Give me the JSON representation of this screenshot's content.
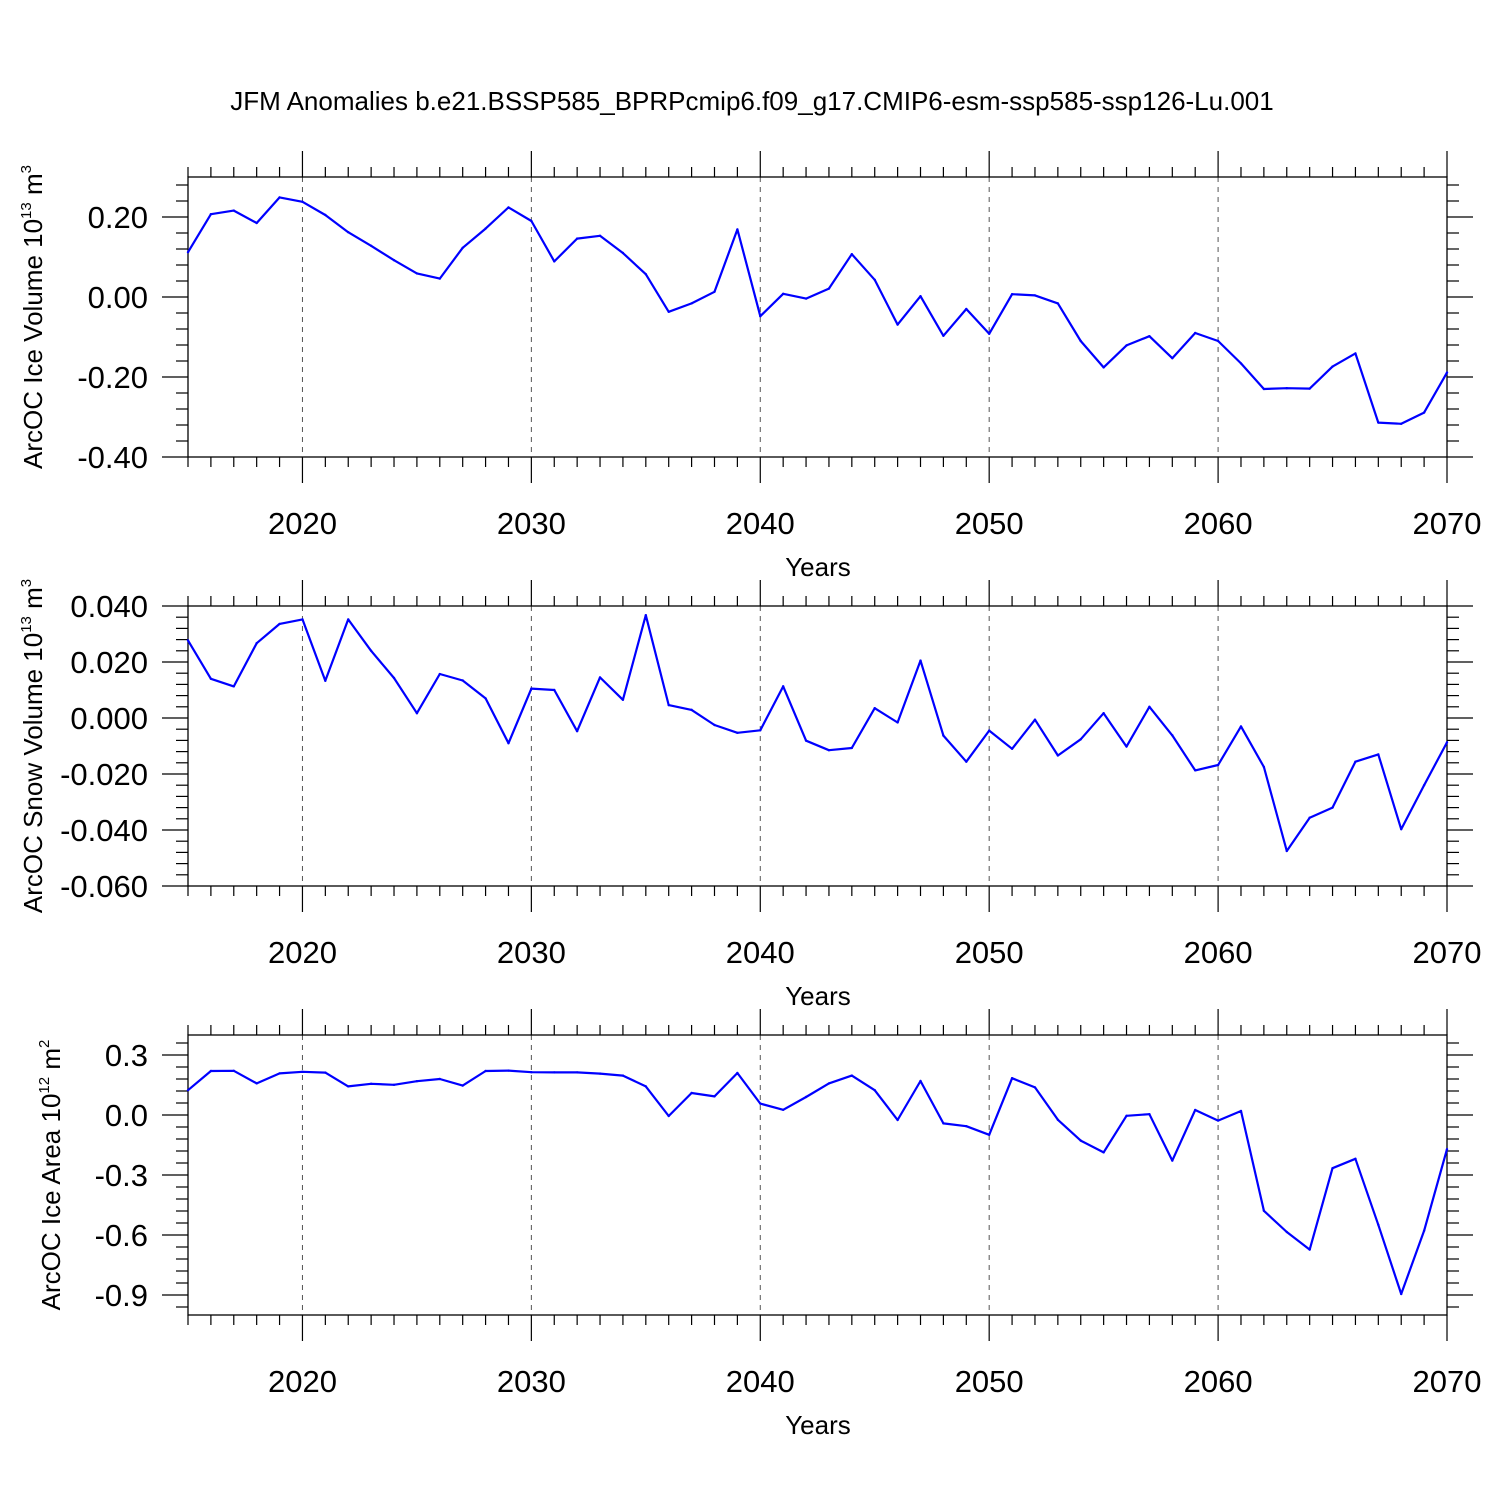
{
  "title": "JFM Anomalies b.e21.BSSP585_BPRPcmip6.f09_g17.CMIP6-esm-ssp585-ssp126-Lu.001",
  "line_color": "#0000ff",
  "chart_data": [
    {
      "type": "line",
      "name": "ice-volume",
      "ylabel_main": "ArcOC Ice Volume 10",
      "ylabel_exp": "13",
      "ylabel_unit": " m",
      "ylabel_unit_exp": "3",
      "xlabel": "Years",
      "xlim": [
        2015,
        2070
      ],
      "ylim": [
        -0.4,
        0.3
      ],
      "xticks": [
        2020,
        2030,
        2040,
        2050,
        2060,
        2070
      ],
      "xtick_labels": [
        "2020",
        "2030",
        "2040",
        "2050",
        "2060",
        "2070"
      ],
      "yticks": [
        0.2,
        0.0,
        -0.2,
        -0.4
      ],
      "ytick_labels": [
        "0.20",
        "0.00",
        "-0.20",
        "-0.40"
      ],
      "x": [
        2015,
        2016,
        2017,
        2018,
        2019,
        2020,
        2021,
        2022,
        2023,
        2024,
        2025,
        2026,
        2027,
        2028,
        2029,
        2030,
        2031,
        2032,
        2033,
        2034,
        2035,
        2036,
        2037,
        2038,
        2039,
        2040,
        2041,
        2042,
        2043,
        2044,
        2045,
        2046,
        2047,
        2048,
        2049,
        2050,
        2051,
        2052,
        2053,
        2054,
        2055,
        2056,
        2057,
        2058,
        2059,
        2060,
        2061,
        2062,
        2063,
        2064,
        2065,
        2066,
        2067,
        2068,
        2069,
        2070
      ],
      "values": [
        0.112,
        0.207,
        0.216,
        0.185,
        0.249,
        0.238,
        0.205,
        0.162,
        0.128,
        0.092,
        0.059,
        0.046,
        0.123,
        0.171,
        0.224,
        0.19,
        0.089,
        0.146,
        0.153,
        0.11,
        0.057,
        -0.037,
        -0.016,
        0.013,
        0.169,
        -0.048,
        0.008,
        -0.004,
        0.021,
        0.107,
        0.043,
        -0.069,
        0.002,
        -0.097,
        -0.03,
        -0.092,
        0.007,
        0.004,
        -0.016,
        -0.11,
        -0.176,
        -0.121,
        -0.098,
        -0.153,
        -0.09,
        -0.11,
        -0.166,
        -0.23,
        -0.228,
        -0.229,
        -0.174,
        -0.141,
        -0.314,
        -0.317,
        -0.289,
        -0.189
      ]
    },
    {
      "type": "line",
      "name": "snow-volume",
      "ylabel_main": "ArcOC Snow Volume 10",
      "ylabel_exp": "13",
      "ylabel_unit": " m",
      "ylabel_unit_exp": "3",
      "xlabel": "Years",
      "xlim": [
        2015,
        2070
      ],
      "ylim": [
        -0.06,
        0.04
      ],
      "xticks": [
        2020,
        2030,
        2040,
        2050,
        2060,
        2070
      ],
      "xtick_labels": [
        "2020",
        "2030",
        "2040",
        "2050",
        "2060",
        "2070"
      ],
      "yticks": [
        0.04,
        0.02,
        0.0,
        -0.02,
        -0.04,
        -0.06
      ],
      "ytick_labels": [
        "0.040",
        "0.020",
        "0.000",
        "-0.020",
        "-0.040",
        "-0.060"
      ],
      "x": [
        2015,
        2016,
        2017,
        2018,
        2019,
        2020,
        2021,
        2022,
        2023,
        2024,
        2025,
        2026,
        2027,
        2028,
        2029,
        2030,
        2031,
        2032,
        2033,
        2034,
        2035,
        2036,
        2037,
        2038,
        2039,
        2040,
        2041,
        2042,
        2043,
        2044,
        2045,
        2046,
        2047,
        2048,
        2049,
        2050,
        2051,
        2052,
        2053,
        2054,
        2055,
        2056,
        2057,
        2058,
        2059,
        2060,
        2061,
        2062,
        2063,
        2064,
        2065,
        2066,
        2067,
        2068,
        2069,
        2070
      ],
      "values": [
        0.0277,
        0.014,
        0.0113,
        0.0267,
        0.0336,
        0.0352,
        0.0133,
        0.0352,
        0.024,
        0.0143,
        0.0017,
        0.0157,
        0.0134,
        0.007,
        -0.009,
        0.0105,
        0.01,
        -0.0047,
        0.0145,
        0.0065,
        0.0367,
        0.0046,
        0.0029,
        -0.0025,
        -0.0053,
        -0.0044,
        0.0113,
        -0.0081,
        -0.0115,
        -0.0107,
        0.0035,
        -0.0016,
        0.0205,
        -0.0063,
        -0.0156,
        -0.0045,
        -0.011,
        -0.0006,
        -0.0134,
        -0.0076,
        0.0017,
        -0.0102,
        0.004,
        -0.0062,
        -0.0187,
        -0.0168,
        -0.003,
        -0.0175,
        -0.0475,
        -0.0356,
        -0.032,
        -0.0156,
        -0.013,
        -0.0397,
        -0.024,
        -0.0087
      ]
    },
    {
      "type": "line",
      "name": "ice-area",
      "ylabel_main": "ArcOC Ice Area 10",
      "ylabel_exp": "12",
      "ylabel_unit": " m",
      "ylabel_unit_exp": "2",
      "xlabel": "Years",
      "xlim": [
        2015,
        2070
      ],
      "ylim": [
        -1.0,
        0.4
      ],
      "xticks": [
        2020,
        2030,
        2040,
        2050,
        2060,
        2070
      ],
      "xtick_labels": [
        "2020",
        "2030",
        "2040",
        "2050",
        "2060",
        "2070"
      ],
      "yticks": [
        0.3,
        0.0,
        -0.3,
        -0.6,
        -0.9
      ],
      "ytick_labels": [
        "0.3",
        "0.0",
        "-0.3",
        "-0.6",
        "-0.9"
      ],
      "x": [
        2015,
        2016,
        2017,
        2018,
        2019,
        2020,
        2021,
        2022,
        2023,
        2024,
        2025,
        2026,
        2027,
        2028,
        2029,
        2030,
        2031,
        2032,
        2033,
        2034,
        2035,
        2036,
        2037,
        2038,
        2039,
        2040,
        2041,
        2042,
        2043,
        2044,
        2045,
        2046,
        2047,
        2048,
        2049,
        2050,
        2051,
        2052,
        2053,
        2054,
        2055,
        2056,
        2057,
        2058,
        2059,
        2060,
        2061,
        2062,
        2063,
        2064,
        2065,
        2066,
        2067,
        2068,
        2069,
        2070
      ],
      "values": [
        0.124,
        0.22,
        0.221,
        0.158,
        0.208,
        0.216,
        0.212,
        0.143,
        0.156,
        0.151,
        0.169,
        0.18,
        0.147,
        0.22,
        0.222,
        0.214,
        0.213,
        0.213,
        0.207,
        0.197,
        0.143,
        -0.005,
        0.11,
        0.093,
        0.21,
        0.057,
        0.026,
        0.09,
        0.158,
        0.197,
        0.124,
        -0.025,
        0.17,
        -0.042,
        -0.056,
        -0.099,
        0.184,
        0.138,
        -0.024,
        -0.128,
        -0.187,
        -0.004,
        0.004,
        -0.228,
        0.025,
        -0.028,
        0.02,
        -0.479,
        -0.585,
        -0.673,
        -0.266,
        -0.219,
        -0.549,
        -0.895,
        -0.579,
        -0.171
      ]
    }
  ]
}
